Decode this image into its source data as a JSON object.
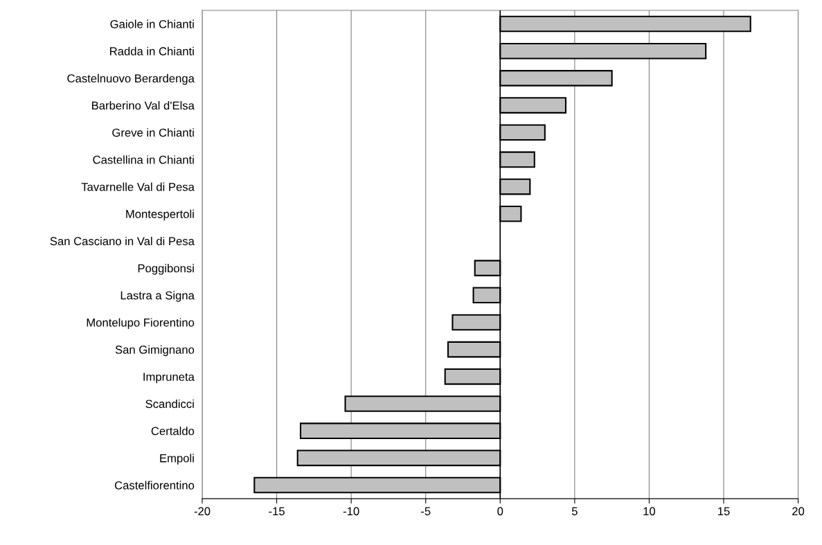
{
  "chart_data": {
    "type": "bar",
    "orientation": "horizontal",
    "categories": [
      "Gaiole in Chianti",
      "Radda in Chianti",
      "Castelnuovo Berardenga",
      "Barberino Val d'Elsa",
      "Greve in Chianti",
      "Castellina in Chianti",
      "Tavarnelle Val di Pesa",
      "Montespertoli",
      "San Casciano in Val di Pesa",
      "Poggibonsi",
      "Lastra a Signa",
      "Montelupo Fiorentino",
      "San Gimignano",
      "Impruneta",
      "Scandicci",
      "Certaldo",
      "Empoli",
      "Castelfiorentino"
    ],
    "values": [
      16.8,
      13.8,
      7.5,
      4.4,
      3.0,
      2.3,
      2.0,
      1.4,
      null,
      -1.7,
      -1.8,
      -3.2,
      -3.5,
      -3.7,
      -10.4,
      -13.4,
      -13.6,
      -16.5
    ],
    "color": "#c0c0c0",
    "xlim": [
      -20,
      20
    ],
    "xticks": [
      -20,
      -15,
      -10,
      -5,
      0,
      5,
      10,
      15,
      20
    ],
    "grid": "x",
    "legend": false
  }
}
